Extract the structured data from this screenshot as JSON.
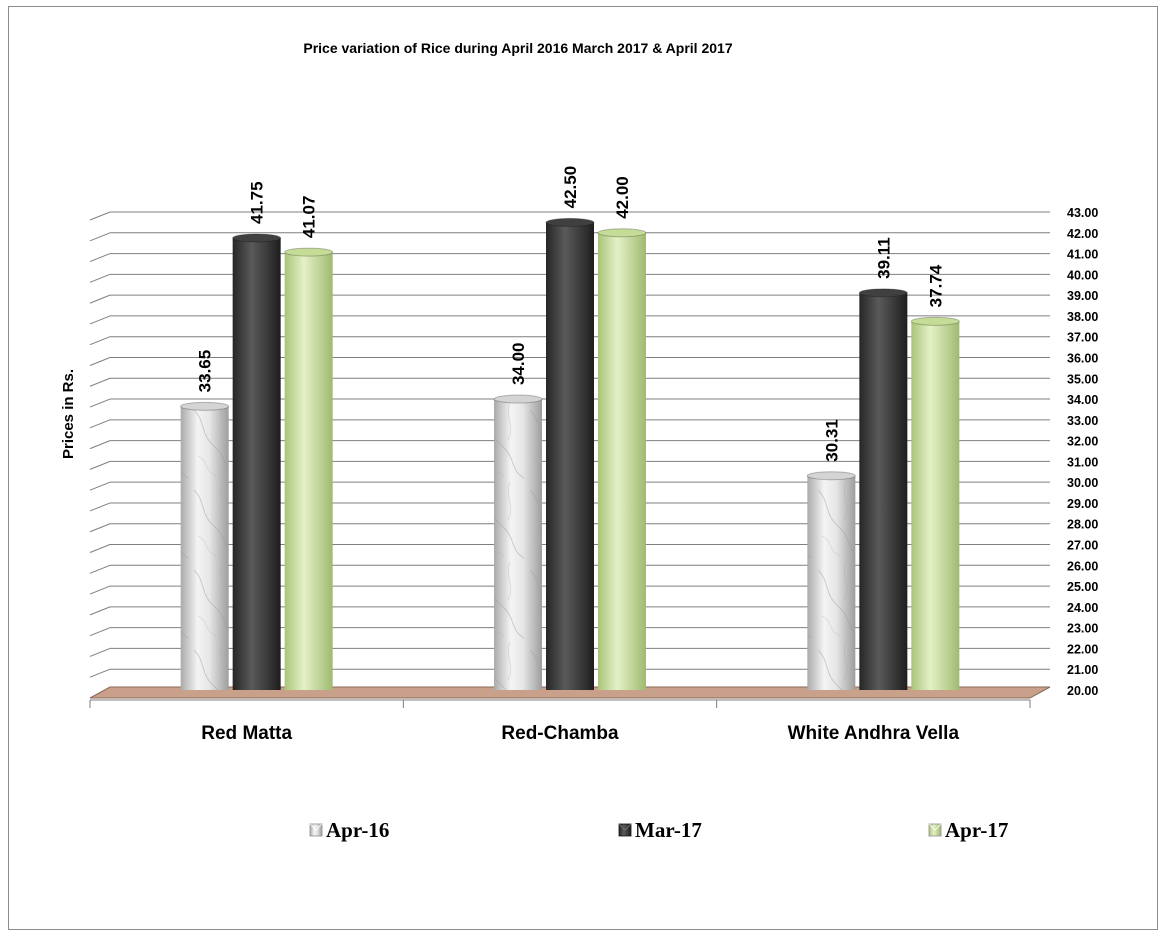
{
  "chart_data": {
    "type": "bar",
    "title": "Price variation of Rice during  April  2016  March  2017 &  April 2017",
    "xlabel": "",
    "ylabel": "Prices in Rs.",
    "ylim": [
      20,
      43
    ],
    "ytick_step": 1,
    "grid": true,
    "legend_position": "bottom",
    "categories": [
      "Red Matta",
      "Red-Chamba",
      "White Andhra Vella"
    ],
    "series": [
      {
        "name": "Apr-16",
        "values": [
          33.65,
          34.0,
          30.31
        ],
        "color": "#d4d4d4"
      },
      {
        "name": "Mar-17",
        "values": [
          41.75,
          42.5,
          39.11
        ],
        "color": "#404040"
      },
      {
        "name": "Apr-17",
        "values": [
          41.07,
          42.0,
          37.74
        ],
        "color": "#c5dc97"
      }
    ],
    "floor_color": "#c9a08a"
  }
}
